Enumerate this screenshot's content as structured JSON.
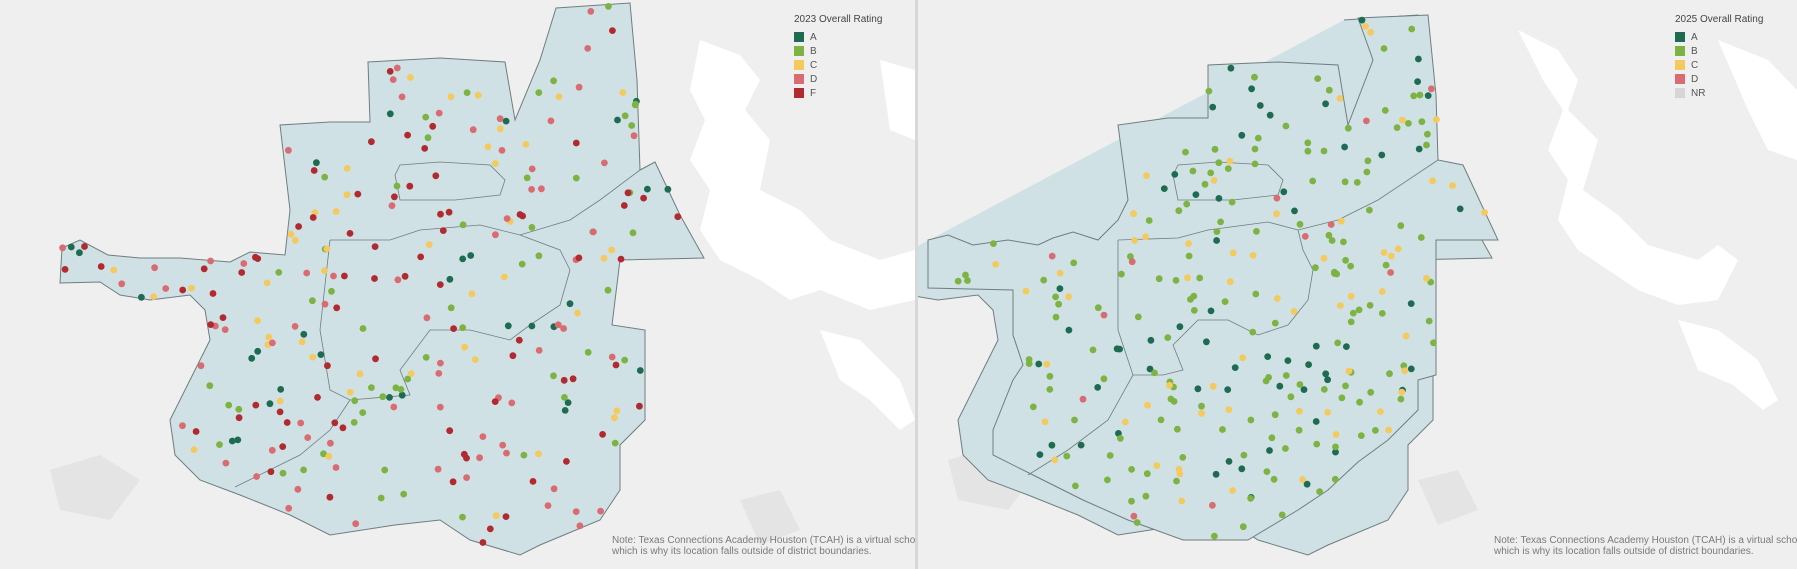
{
  "colors": {
    "A": "#1e6b52",
    "B": "#7cb342",
    "C": "#f4c95d",
    "D": "#d96b73",
    "F": "#b02a30",
    "NR": "#d6d6d6"
  },
  "panels": [
    {
      "legend": {
        "title": "2023 Overall Rating",
        "items": [
          {
            "label": "A",
            "key": "A"
          },
          {
            "label": "B",
            "key": "B"
          },
          {
            "label": "C",
            "key": "C"
          },
          {
            "label": "D",
            "key": "D"
          },
          {
            "label": "F",
            "key": "F"
          }
        ]
      },
      "note": {
        "line1": "Note: Texas Connections Academy Houston (TCAH) is a virtual school,",
        "line2": "which is why its location falls outside of district boundaries."
      }
    },
    {
      "legend": {
        "title": "2025 Overall Rating",
        "items": [
          {
            "label": "A",
            "key": "A"
          },
          {
            "label": "B",
            "key": "B"
          },
          {
            "label": "C",
            "key": "C"
          },
          {
            "label": "D",
            "key": "D"
          },
          {
            "label": "NR",
            "key": "NR"
          }
        ]
      },
      "note": {
        "line1": "Note: Texas Connections Academy Houston (TCAH) is a virtual school,",
        "line2": "which is why its location falls outside of district boundaries."
      }
    }
  ],
  "rating_counts_estimate": {
    "2023": {
      "A": 30,
      "B": 55,
      "C": 45,
      "D": 70,
      "F": 75
    },
    "2025": {
      "A": 60,
      "B": 150,
      "C": 60,
      "D": 12,
      "NR": 0
    }
  }
}
